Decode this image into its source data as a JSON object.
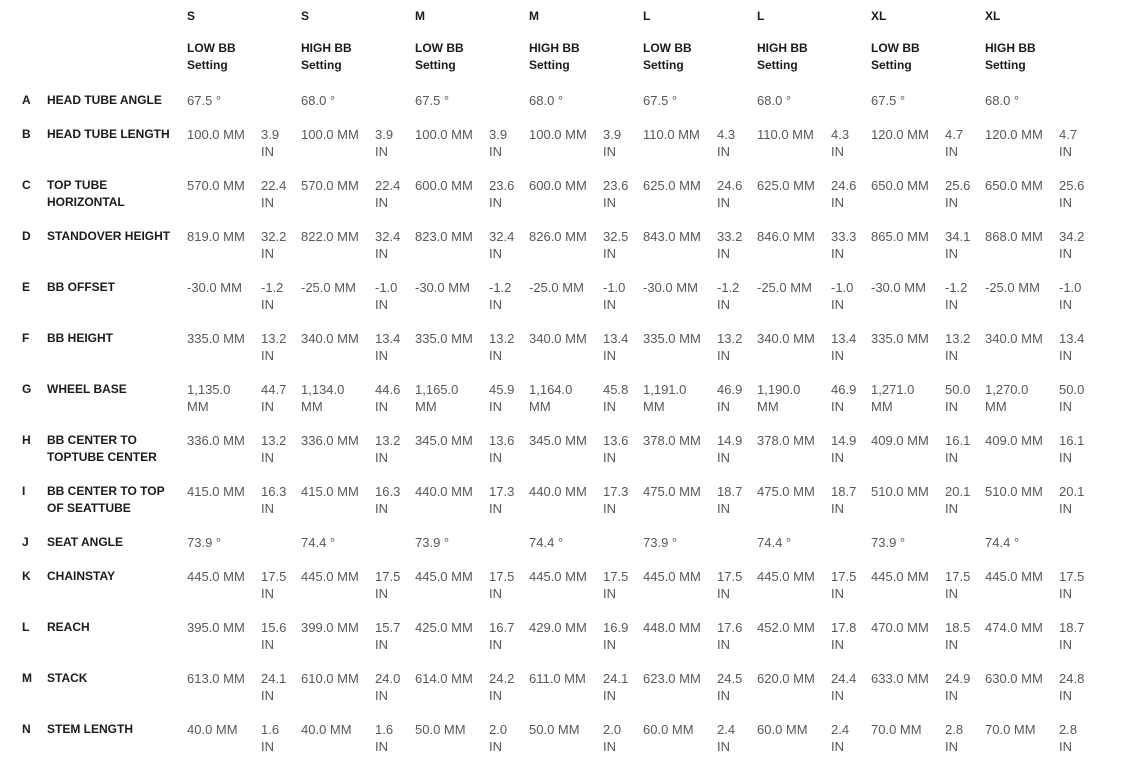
{
  "chart_data": {
    "type": "table",
    "columns": [
      {
        "size": "S",
        "setting": "LOW BB\nSetting"
      },
      {
        "size": "S",
        "setting": "HIGH BB\nSetting"
      },
      {
        "size": "M",
        "setting": "LOW BB\nSetting"
      },
      {
        "size": "M",
        "setting": "HIGH BB\nSetting"
      },
      {
        "size": "L",
        "setting": "LOW BB\nSetting"
      },
      {
        "size": "L",
        "setting": "HIGH BB\nSetting"
      },
      {
        "size": "XL",
        "setting": "LOW BB\nSetting"
      },
      {
        "size": "XL",
        "setting": "HIGH BB\nSetting"
      }
    ],
    "rows": [
      {
        "letter": "A",
        "label": "HEAD TUBE ANGLE",
        "type": "angle",
        "values": [
          "67.5 °",
          "68.0 °",
          "67.5 °",
          "68.0 °",
          "67.5 °",
          "68.0 °",
          "67.5 °",
          "68.0 °"
        ]
      },
      {
        "letter": "B",
        "label": "HEAD TUBE LENGTH",
        "type": "mm_in",
        "cells": [
          {
            "mm": "100.0 MM",
            "in": "3.9\nIN"
          },
          {
            "mm": "100.0 MM",
            "in": "3.9\nIN"
          },
          {
            "mm": "100.0 MM",
            "in": "3.9\nIN"
          },
          {
            "mm": "100.0 MM",
            "in": "3.9\nIN"
          },
          {
            "mm": "110.0 MM",
            "in": "4.3\nIN"
          },
          {
            "mm": "110.0 MM",
            "in": "4.3\nIN"
          },
          {
            "mm": "120.0 MM",
            "in": "4.7\nIN"
          },
          {
            "mm": "120.0 MM",
            "in": "4.7\nIN"
          }
        ]
      },
      {
        "letter": "C",
        "label": "TOP TUBE\nHORIZONTAL",
        "type": "mm_in",
        "cells": [
          {
            "mm": "570.0 MM",
            "in": "22.4\nIN"
          },
          {
            "mm": "570.0 MM",
            "in": "22.4\nIN"
          },
          {
            "mm": "600.0 MM",
            "in": "23.6\nIN"
          },
          {
            "mm": "600.0 MM",
            "in": "23.6\nIN"
          },
          {
            "mm": "625.0 MM",
            "in": "24.6\nIN"
          },
          {
            "mm": "625.0 MM",
            "in": "24.6\nIN"
          },
          {
            "mm": "650.0 MM",
            "in": "25.6\nIN"
          },
          {
            "mm": "650.0 MM",
            "in": "25.6\nIN"
          }
        ]
      },
      {
        "letter": "D",
        "label": "STANDOVER HEIGHT",
        "type": "mm_in",
        "cells": [
          {
            "mm": "819.0 MM",
            "in": "32.2\nIN"
          },
          {
            "mm": "822.0 MM",
            "in": "32.4\nIN"
          },
          {
            "mm": "823.0 MM",
            "in": "32.4\nIN"
          },
          {
            "mm": "826.0 MM",
            "in": "32.5\nIN"
          },
          {
            "mm": "843.0 MM",
            "in": "33.2\nIN"
          },
          {
            "mm": "846.0 MM",
            "in": "33.3\nIN"
          },
          {
            "mm": "865.0 MM",
            "in": "34.1\nIN"
          },
          {
            "mm": "868.0 MM",
            "in": "34.2\nIN"
          }
        ]
      },
      {
        "letter": "E",
        "label": "BB OFFSET",
        "type": "mm_in",
        "cells": [
          {
            "mm": "-30.0 MM",
            "in": "-1.2\nIN"
          },
          {
            "mm": "-25.0 MM",
            "in": "-1.0\nIN"
          },
          {
            "mm": "-30.0 MM",
            "in": "-1.2\nIN"
          },
          {
            "mm": "-25.0 MM",
            "in": "-1.0\nIN"
          },
          {
            "mm": "-30.0 MM",
            "in": "-1.2\nIN"
          },
          {
            "mm": "-25.0 MM",
            "in": "-1.0\nIN"
          },
          {
            "mm": "-30.0 MM",
            "in": "-1.2\nIN"
          },
          {
            "mm": "-25.0 MM",
            "in": "-1.0\nIN"
          }
        ]
      },
      {
        "letter": "F",
        "label": "BB HEIGHT",
        "type": "mm_in",
        "cells": [
          {
            "mm": "335.0 MM",
            "in": "13.2\nIN"
          },
          {
            "mm": "340.0 MM",
            "in": "13.4\nIN"
          },
          {
            "mm": "335.0 MM",
            "in": "13.2\nIN"
          },
          {
            "mm": "340.0 MM",
            "in": "13.4\nIN"
          },
          {
            "mm": "335.0 MM",
            "in": "13.2\nIN"
          },
          {
            "mm": "340.0 MM",
            "in": "13.4\nIN"
          },
          {
            "mm": "335.0 MM",
            "in": "13.2\nIN"
          },
          {
            "mm": "340.0 MM",
            "in": "13.4\nIN"
          }
        ]
      },
      {
        "letter": "G",
        "label": "WHEEL BASE",
        "type": "mm_in",
        "cells": [
          {
            "mm": "1,135.0\nMM",
            "in": "44.7\nIN"
          },
          {
            "mm": "1,134.0\nMM",
            "in": "44.6\nIN"
          },
          {
            "mm": "1,165.0\nMM",
            "in": "45.9\nIN"
          },
          {
            "mm": "1,164.0\nMM",
            "in": "45.8\nIN"
          },
          {
            "mm": "1,191.0\nMM",
            "in": "46.9\nIN"
          },
          {
            "mm": "1,190.0\nMM",
            "in": "46.9\nIN"
          },
          {
            "mm": "1,271.0\nMM",
            "in": "50.0\nIN"
          },
          {
            "mm": "1,270.0\nMM",
            "in": "50.0\nIN"
          }
        ]
      },
      {
        "letter": "H",
        "label": "BB CENTER TO\nTOPTUBE CENTER",
        "type": "mm_in",
        "cells": [
          {
            "mm": "336.0 MM",
            "in": "13.2\nIN"
          },
          {
            "mm": "336.0 MM",
            "in": "13.2\nIN"
          },
          {
            "mm": "345.0 MM",
            "in": "13.6\nIN"
          },
          {
            "mm": "345.0 MM",
            "in": "13.6\nIN"
          },
          {
            "mm": "378.0 MM",
            "in": "14.9\nIN"
          },
          {
            "mm": "378.0 MM",
            "in": "14.9\nIN"
          },
          {
            "mm": "409.0 MM",
            "in": "16.1\nIN"
          },
          {
            "mm": "409.0 MM",
            "in": "16.1\nIN"
          }
        ]
      },
      {
        "letter": "I",
        "label": "BB CENTER TO TOP\nOF SEATTUBE",
        "type": "mm_in",
        "cells": [
          {
            "mm": "415.0 MM",
            "in": "16.3\nIN"
          },
          {
            "mm": "415.0 MM",
            "in": "16.3\nIN"
          },
          {
            "mm": "440.0 MM",
            "in": "17.3\nIN"
          },
          {
            "mm": "440.0 MM",
            "in": "17.3\nIN"
          },
          {
            "mm": "475.0 MM",
            "in": "18.7\nIN"
          },
          {
            "mm": "475.0 MM",
            "in": "18.7\nIN"
          },
          {
            "mm": "510.0 MM",
            "in": "20.1\nIN"
          },
          {
            "mm": "510.0 MM",
            "in": "20.1\nIN"
          }
        ]
      },
      {
        "letter": "J",
        "label": "SEAT ANGLE",
        "type": "angle",
        "values": [
          "73.9 °",
          "74.4 °",
          "73.9 °",
          "74.4 °",
          "73.9 °",
          "74.4 °",
          "73.9 °",
          "74.4 °"
        ]
      },
      {
        "letter": "K",
        "label": "CHAINSTAY",
        "type": "mm_in",
        "cells": [
          {
            "mm": "445.0 MM",
            "in": "17.5\nIN"
          },
          {
            "mm": "445.0 MM",
            "in": "17.5\nIN"
          },
          {
            "mm": "445.0 MM",
            "in": "17.5\nIN"
          },
          {
            "mm": "445.0 MM",
            "in": "17.5\nIN"
          },
          {
            "mm": "445.0 MM",
            "in": "17.5\nIN"
          },
          {
            "mm": "445.0 MM",
            "in": "17.5\nIN"
          },
          {
            "mm": "445.0 MM",
            "in": "17.5\nIN"
          },
          {
            "mm": "445.0 MM",
            "in": "17.5\nIN"
          }
        ]
      },
      {
        "letter": "L",
        "label": "REACH",
        "type": "mm_in",
        "cells": [
          {
            "mm": "395.0 MM",
            "in": "15.6\nIN"
          },
          {
            "mm": "399.0 MM",
            "in": "15.7\nIN"
          },
          {
            "mm": "425.0 MM",
            "in": "16.7\nIN"
          },
          {
            "mm": "429.0 MM",
            "in": "16.9\nIN"
          },
          {
            "mm": "448.0 MM",
            "in": "17.6\nIN"
          },
          {
            "mm": "452.0 MM",
            "in": "17.8\nIN"
          },
          {
            "mm": "470.0 MM",
            "in": "18.5\nIN"
          },
          {
            "mm": "474.0 MM",
            "in": "18.7\nIN"
          }
        ]
      },
      {
        "letter": "M",
        "label": "STACK",
        "type": "mm_in",
        "cells": [
          {
            "mm": "613.0 MM",
            "in": "24.1\nIN"
          },
          {
            "mm": "610.0 MM",
            "in": "24.0\nIN"
          },
          {
            "mm": "614.0 MM",
            "in": "24.2\nIN"
          },
          {
            "mm": "611.0 MM",
            "in": "24.1\nIN"
          },
          {
            "mm": "623.0 MM",
            "in": "24.5\nIN"
          },
          {
            "mm": "620.0 MM",
            "in": "24.4\nIN"
          },
          {
            "mm": "633.0 MM",
            "in": "24.9\nIN"
          },
          {
            "mm": "630.0 MM",
            "in": "24.8\nIN"
          }
        ]
      },
      {
        "letter": "N",
        "label": "STEM LENGTH",
        "type": "mm_in",
        "cells": [
          {
            "mm": "40.0 MM",
            "in": "1.6\nIN"
          },
          {
            "mm": "40.0 MM",
            "in": "1.6\nIN"
          },
          {
            "mm": "50.0 MM",
            "in": "2.0\nIN"
          },
          {
            "mm": "50.0 MM",
            "in": "2.0\nIN"
          },
          {
            "mm": "60.0 MM",
            "in": "2.4\nIN"
          },
          {
            "mm": "60.0 MM",
            "in": "2.4\nIN"
          },
          {
            "mm": "70.0 MM",
            "in": "2.8\nIN"
          },
          {
            "mm": "70.0 MM",
            "in": "2.8\nIN"
          }
        ]
      }
    ],
    "colors": {
      "label_text": "#1b1b1b",
      "value_text": "#55585c",
      "background": "#ffffff"
    }
  }
}
